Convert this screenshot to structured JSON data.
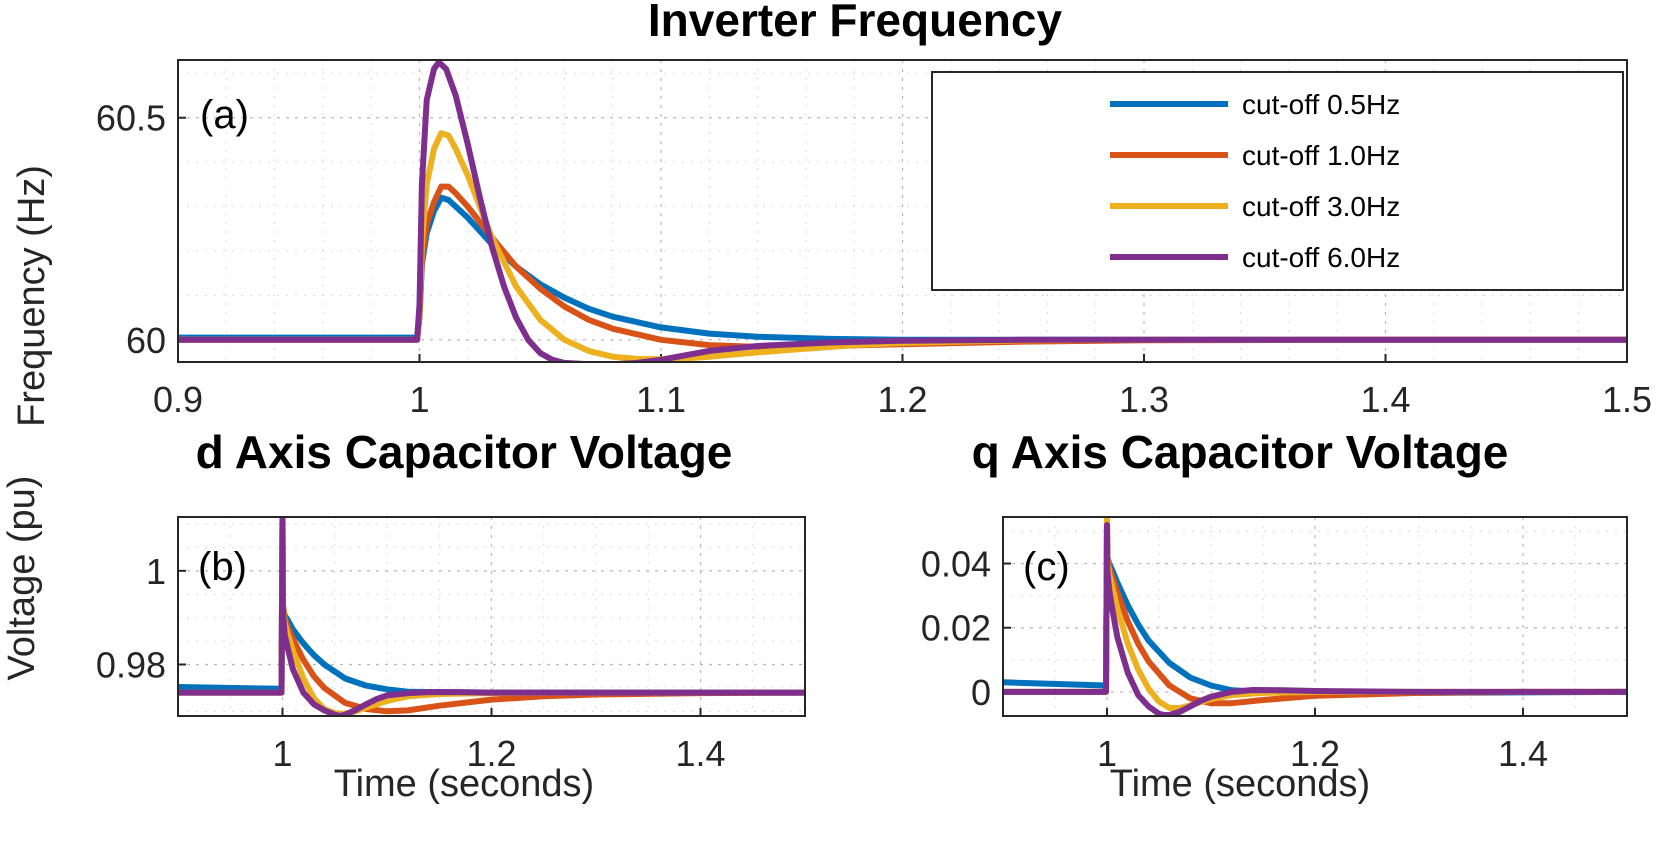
{
  "chart_data": [
    {
      "panel_id": "a",
      "type": "line",
      "title": "Inverter Frequency",
      "panel_label": "(a)",
      "ylabel": "Frequency (Hz)",
      "xlabel": "",
      "xlim": [
        0.9,
        1.5
      ],
      "ylim": [
        59.95,
        60.63
      ],
      "xticks": [
        0.9,
        1.0,
        1.1,
        1.2,
        1.3,
        1.4,
        1.5
      ],
      "xtick_labels": [
        "0.9",
        "1",
        "1.1",
        "1.2",
        "1.3",
        "1.4",
        "1.5"
      ],
      "yticks": [
        60,
        60.5
      ],
      "ytick_labels": [
        "60",
        "60.5"
      ],
      "grid": true,
      "legend_position": "top-right",
      "series": [
        {
          "name": "cut-off 0.5Hz",
          "color": "#0072BD",
          "x": [
            0.9,
            0.999,
            1.0,
            1.001,
            1.003,
            1.006,
            1.009,
            1.012,
            1.015,
            1.02,
            1.025,
            1.03,
            1.04,
            1.05,
            1.06,
            1.07,
            1.08,
            1.1,
            1.12,
            1.14,
            1.17,
            1.2,
            1.25,
            1.3,
            1.4,
            1.5
          ],
          "y": [
            60.005,
            60.005,
            60.05,
            60.17,
            60.24,
            60.29,
            60.32,
            60.315,
            60.3,
            60.275,
            60.245,
            60.215,
            60.165,
            60.125,
            60.095,
            60.07,
            60.052,
            60.028,
            60.014,
            60.007,
            60.002,
            60.0,
            60.0,
            60.0,
            60.0,
            60.0
          ]
        },
        {
          "name": "cut-off 1.0Hz",
          "color": "#D95319",
          "x": [
            0.9,
            0.999,
            1.0,
            1.001,
            1.003,
            1.006,
            1.009,
            1.012,
            1.015,
            1.02,
            1.025,
            1.03,
            1.04,
            1.05,
            1.06,
            1.07,
            1.08,
            1.1,
            1.12,
            1.14,
            1.17,
            1.2,
            1.25,
            1.3,
            1.4,
            1.5
          ],
          "y": [
            60.0,
            60.0,
            60.05,
            60.18,
            60.26,
            60.31,
            60.345,
            60.345,
            60.33,
            60.3,
            60.265,
            60.23,
            60.165,
            60.115,
            60.075,
            60.045,
            60.025,
            60.0,
            59.988,
            59.984,
            59.986,
            59.99,
            59.996,
            59.999,
            60.0,
            60.0
          ]
        },
        {
          "name": "cut-off 3.0Hz",
          "color": "#EDB120",
          "x": [
            0.9,
            0.999,
            1.0,
            1.001,
            1.003,
            1.006,
            1.009,
            1.012,
            1.015,
            1.02,
            1.025,
            1.03,
            1.04,
            1.05,
            1.06,
            1.07,
            1.08,
            1.09,
            1.1,
            1.11,
            1.12,
            1.13,
            1.15,
            1.18,
            1.2,
            1.25,
            1.3,
            1.4,
            1.5
          ],
          "y": [
            60.0,
            60.0,
            60.06,
            60.22,
            60.35,
            60.43,
            60.465,
            60.46,
            60.43,
            60.37,
            60.3,
            60.23,
            60.12,
            60.045,
            60.0,
            59.975,
            59.962,
            59.957,
            59.956,
            59.958,
            59.962,
            59.967,
            59.976,
            59.988,
            59.993,
            59.999,
            60.0,
            60.0,
            60.0
          ]
        },
        {
          "name": "cut-off 6.0Hz",
          "color": "#7E2F8E",
          "x": [
            0.9,
            0.999,
            1.0,
            1.001,
            1.003,
            1.006,
            1.008,
            1.011,
            1.015,
            1.02,
            1.025,
            1.03,
            1.035,
            1.04,
            1.045,
            1.05,
            1.055,
            1.06,
            1.07,
            1.08,
            1.09,
            1.1,
            1.11,
            1.12,
            1.14,
            1.17,
            1.2,
            1.25,
            1.3,
            1.4,
            1.5
          ],
          "y": [
            60.0,
            60.0,
            60.08,
            60.35,
            60.54,
            60.61,
            60.625,
            60.61,
            60.55,
            60.44,
            60.32,
            60.21,
            60.12,
            60.05,
            60.0,
            59.97,
            59.955,
            59.948,
            59.945,
            59.945,
            59.948,
            59.955,
            59.965,
            59.975,
            59.986,
            59.994,
            59.998,
            60.0,
            60.0,
            60.0,
            60.0
          ]
        }
      ]
    },
    {
      "panel_id": "b",
      "type": "line",
      "title": "d Axis Capacitor Voltage",
      "panel_label": "(b)",
      "ylabel": "",
      "xlabel": "Time (seconds)",
      "xlim": [
        0.9,
        1.5
      ],
      "ylim": [
        0.969,
        1.0115
      ],
      "xticks": [
        1.0,
        1.2,
        1.4
      ],
      "xtick_labels": [
        "1",
        "1.2",
        "1.4"
      ],
      "yticks": [
        0.98,
        1.0
      ],
      "ytick_labels": [
        "0.98",
        "1"
      ],
      "grid": true,
      "series": [
        {
          "name": "cut-off 0.5Hz",
          "color": "#0072BD",
          "x": [
            0.9,
            0.999,
            1.0,
            1.0003,
            1.002,
            1.005,
            1.01,
            1.02,
            1.03,
            1.04,
            1.06,
            1.08,
            1.1,
            1.12,
            1.15,
            1.2,
            1.3,
            1.5
          ],
          "y": [
            0.9752,
            0.9748,
            1.0115,
            0.993,
            0.9905,
            0.9895,
            0.9875,
            0.9845,
            0.982,
            0.98,
            0.977,
            0.9755,
            0.9747,
            0.9742,
            0.9741,
            0.974,
            0.974,
            0.974
          ]
        },
        {
          "name": "cut-off 1.0Hz",
          "color": "#D95319",
          "x": [
            0.9,
            0.999,
            1.0,
            1.0003,
            1.002,
            1.005,
            1.01,
            1.02,
            1.03,
            1.04,
            1.06,
            1.08,
            1.1,
            1.12,
            1.15,
            1.2,
            1.25,
            1.3,
            1.4,
            1.5
          ],
          "y": [
            0.974,
            0.974,
            1.0115,
            0.993,
            0.99,
            0.988,
            0.9855,
            0.981,
            0.9775,
            0.975,
            0.9718,
            0.9705,
            0.97,
            0.9702,
            0.9712,
            0.9725,
            0.9732,
            0.9736,
            0.9739,
            0.974
          ]
        },
        {
          "name": "cut-off 3.0Hz",
          "color": "#EDB120",
          "x": [
            0.9,
            0.999,
            1.0,
            1.0003,
            1.002,
            1.005,
            1.01,
            1.02,
            1.03,
            1.04,
            1.05,
            1.06,
            1.07,
            1.08,
            1.1,
            1.12,
            1.15,
            1.2,
            1.3,
            1.5
          ],
          "y": [
            0.974,
            0.974,
            1.0115,
            0.993,
            0.989,
            0.9865,
            0.983,
            0.977,
            0.9728,
            0.9705,
            0.9696,
            0.9695,
            0.97,
            0.9708,
            0.9722,
            0.9732,
            0.9737,
            0.9739,
            0.974,
            0.974
          ]
        },
        {
          "name": "cut-off 6.0Hz",
          "color": "#7E2F8E",
          "x": [
            0.9,
            0.999,
            1.0,
            1.0003,
            1.002,
            1.005,
            1.01,
            1.02,
            1.03,
            1.04,
            1.05,
            1.055,
            1.06,
            1.07,
            1.08,
            1.09,
            1.1,
            1.12,
            1.14,
            1.17,
            1.2,
            1.3,
            1.5
          ],
          "y": [
            0.974,
            0.974,
            1.0115,
            0.992,
            0.9865,
            0.9835,
            0.979,
            0.974,
            0.9715,
            0.9702,
            0.9693,
            0.969,
            0.9693,
            0.9703,
            0.9715,
            0.9726,
            0.9734,
            0.9739,
            0.9741,
            0.9741,
            0.974,
            0.974,
            0.974
          ]
        }
      ]
    },
    {
      "panel_id": "c",
      "type": "line",
      "title": "q Axis Capacitor Voltage",
      "panel_label": "(c)",
      "ylabel": "",
      "xlabel": "Time (seconds)",
      "xlim": [
        0.9,
        1.5
      ],
      "ylim": [
        -0.0075,
        0.0545
      ],
      "xticks": [
        1.0,
        1.2,
        1.4
      ],
      "xtick_labels": [
        "1",
        "1.2",
        "1.4"
      ],
      "yticks": [
        0,
        0.02,
        0.04
      ],
      "ytick_labels": [
        "0",
        "0.02",
        "0.04"
      ],
      "grid": true,
      "series": [
        {
          "name": "cut-off 0.5Hz",
          "color": "#0072BD",
          "x": [
            0.9,
            0.999,
            1.0,
            1.0003,
            1.002,
            1.005,
            1.01,
            1.02,
            1.03,
            1.04,
            1.06,
            1.08,
            1.1,
            1.12,
            1.15,
            1.2,
            1.3,
            1.5
          ],
          "y": [
            0.003,
            0.002,
            0.054,
            0.042,
            0.04,
            0.038,
            0.034,
            0.027,
            0.021,
            0.016,
            0.009,
            0.0045,
            0.002,
            0.0005,
            0.0,
            -0.0005,
            -0.0003,
            0.0
          ]
        },
        {
          "name": "cut-off 1.0Hz",
          "color": "#D95319",
          "x": [
            0.9,
            0.999,
            1.0,
            1.0003,
            1.002,
            1.005,
            1.01,
            1.02,
            1.03,
            1.04,
            1.06,
            1.08,
            1.1,
            1.12,
            1.15,
            1.2,
            1.3,
            1.4,
            1.5
          ],
          "y": [
            0.0,
            0.0,
            0.054,
            0.042,
            0.039,
            0.036,
            0.031,
            0.022,
            0.015,
            0.0095,
            0.002,
            -0.002,
            -0.0035,
            -0.0035,
            -0.0025,
            -0.0012,
            -0.0003,
            0.0,
            0.0
          ]
        },
        {
          "name": "cut-off 3.0Hz",
          "color": "#EDB120",
          "x": [
            0.9,
            0.999,
            1.0,
            1.0003,
            1.002,
            1.005,
            1.01,
            1.02,
            1.03,
            1.04,
            1.05,
            1.06,
            1.07,
            1.08,
            1.1,
            1.12,
            1.15,
            1.2,
            1.3,
            1.5
          ],
          "y": [
            0.0,
            0.0,
            0.054,
            0.041,
            0.037,
            0.033,
            0.026,
            0.015,
            0.007,
            0.001,
            -0.003,
            -0.005,
            -0.005,
            -0.0042,
            -0.0022,
            -0.001,
            -0.0003,
            0.0,
            0.0,
            0.0
          ]
        },
        {
          "name": "cut-off 6.0Hz",
          "color": "#7E2F8E",
          "x": [
            0.9,
            0.999,
            1.0,
            1.0003,
            1.002,
            1.005,
            1.01,
            1.02,
            1.03,
            1.04,
            1.05,
            1.055,
            1.06,
            1.07,
            1.08,
            1.09,
            1.1,
            1.12,
            1.14,
            1.17,
            1.2,
            1.3,
            1.5
          ],
          "y": [
            0.0,
            0.0,
            0.052,
            0.038,
            0.032,
            0.026,
            0.017,
            0.006,
            -0.001,
            -0.0045,
            -0.0068,
            -0.0072,
            -0.0072,
            -0.0062,
            -0.0045,
            -0.0028,
            -0.0015,
            0.0,
            0.0006,
            0.0005,
            0.0003,
            0.0,
            0.0
          ]
        }
      ]
    }
  ],
  "shared_ylabel": "Voltage (pu)"
}
